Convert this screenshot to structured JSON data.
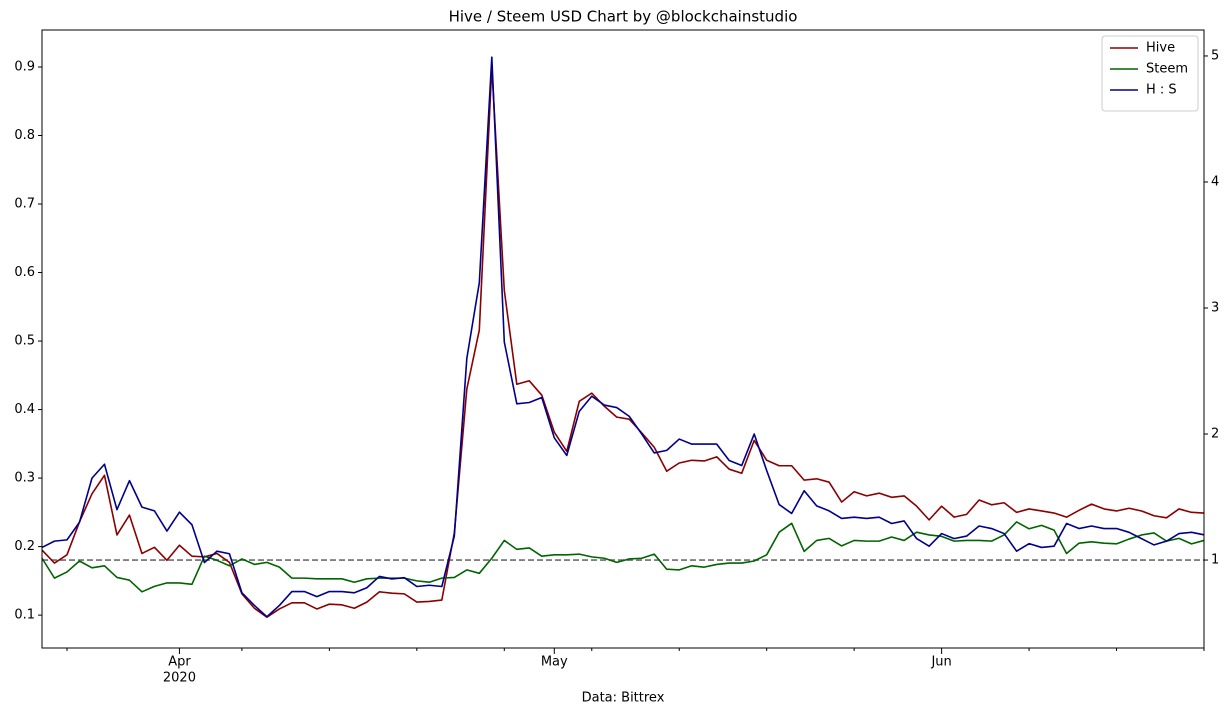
{
  "chart_data": {
    "type": "line",
    "title": "Hive / Steem USD Chart by @blockchainstudio",
    "xlabel": "Data: Bittrex",
    "x_year": "2020",
    "x": [
      "2020-03-21",
      "2020-03-22",
      "2020-03-23",
      "2020-03-24",
      "2020-03-25",
      "2020-03-26",
      "2020-03-27",
      "2020-03-28",
      "2020-03-29",
      "2020-03-30",
      "2020-03-31",
      "2020-04-01",
      "2020-04-02",
      "2020-04-03",
      "2020-04-04",
      "2020-04-05",
      "2020-04-06",
      "2020-04-07",
      "2020-04-08",
      "2020-04-09",
      "2020-04-10",
      "2020-04-11",
      "2020-04-12",
      "2020-04-13",
      "2020-04-14",
      "2020-04-15",
      "2020-04-16",
      "2020-04-17",
      "2020-04-18",
      "2020-04-19",
      "2020-04-20",
      "2020-04-21",
      "2020-04-22",
      "2020-04-23",
      "2020-04-24",
      "2020-04-25",
      "2020-04-26",
      "2020-04-27",
      "2020-04-28",
      "2020-04-29",
      "2020-04-30",
      "2020-05-01",
      "2020-05-02",
      "2020-05-03",
      "2020-05-04",
      "2020-05-05",
      "2020-05-06",
      "2020-05-07",
      "2020-05-08",
      "2020-05-09",
      "2020-05-10",
      "2020-05-11",
      "2020-05-12",
      "2020-05-13",
      "2020-05-14",
      "2020-05-15",
      "2020-05-16",
      "2020-05-17",
      "2020-05-18",
      "2020-05-19",
      "2020-05-20",
      "2020-05-21",
      "2020-05-22",
      "2020-05-23",
      "2020-05-24",
      "2020-05-25",
      "2020-05-26",
      "2020-05-27",
      "2020-05-28",
      "2020-05-29",
      "2020-05-30",
      "2020-05-31",
      "2020-06-01",
      "2020-06-02",
      "2020-06-03",
      "2020-06-04",
      "2020-06-05",
      "2020-06-06",
      "2020-06-07",
      "2020-06-08",
      "2020-06-09",
      "2020-06-10",
      "2020-06-11",
      "2020-06-12",
      "2020-06-13",
      "2020-06-14",
      "2020-06-15",
      "2020-06-16",
      "2020-06-17",
      "2020-06-18",
      "2020-06-19",
      "2020-06-20",
      "2020-06-21",
      "2020-06-22"
    ],
    "series": [
      {
        "name": "Hive",
        "color": "#8b0000",
        "values": [
          0.195,
          0.176,
          0.188,
          0.236,
          0.277,
          0.304,
          0.217,
          0.246,
          0.19,
          0.199,
          0.18,
          0.202,
          0.186,
          0.185,
          0.19,
          0.177,
          0.131,
          0.11,
          0.097,
          0.109,
          0.118,
          0.118,
          0.109,
          0.116,
          0.115,
          0.11,
          0.119,
          0.134,
          0.132,
          0.131,
          0.119,
          0.12,
          0.122,
          0.22,
          0.43,
          0.516,
          0.9,
          0.574,
          0.437,
          0.442,
          0.421,
          0.367,
          0.339,
          0.412,
          0.424,
          0.405,
          0.389,
          0.386,
          0.366,
          0.345,
          0.31,
          0.322,
          0.326,
          0.325,
          0.331,
          0.313,
          0.307,
          0.355,
          0.326,
          0.318,
          0.318,
          0.297,
          0.299,
          0.294,
          0.265,
          0.28,
          0.274,
          0.278,
          0.272,
          0.274,
          0.259,
          0.239,
          0.259,
          0.243,
          0.247,
          0.268,
          0.261,
          0.264,
          0.25,
          0.255,
          0.252,
          0.249,
          0.243,
          0.253,
          0.262,
          0.255,
          0.252,
          0.256,
          0.252,
          0.245,
          0.242,
          0.255,
          0.25,
          0.249
        ]
      },
      {
        "name": "Steem",
        "color": "#006400",
        "values": [
          0.183,
          0.154,
          0.163,
          0.179,
          0.169,
          0.172,
          0.155,
          0.151,
          0.134,
          0.142,
          0.147,
          0.147,
          0.145,
          0.186,
          0.18,
          0.172,
          0.182,
          0.174,
          0.177,
          0.17,
          0.154,
          0.154,
          0.153,
          0.153,
          0.153,
          0.148,
          0.153,
          0.154,
          0.154,
          0.154,
          0.15,
          0.148,
          0.154,
          0.155,
          0.166,
          0.161,
          0.183,
          0.209,
          0.196,
          0.198,
          0.186,
          0.188,
          0.188,
          0.189,
          0.185,
          0.183,
          0.177,
          0.182,
          0.183,
          0.189,
          0.167,
          0.166,
          0.172,
          0.17,
          0.174,
          0.176,
          0.176,
          0.179,
          0.188,
          0.221,
          0.234,
          0.193,
          0.209,
          0.212,
          0.201,
          0.209,
          0.208,
          0.208,
          0.214,
          0.209,
          0.221,
          0.217,
          0.215,
          0.208,
          0.209,
          0.209,
          0.208,
          0.217,
          0.236,
          0.226,
          0.231,
          0.224,
          0.19,
          0.205,
          0.207,
          0.205,
          0.204,
          0.211,
          0.217,
          0.22,
          0.208,
          0.212,
          0.204,
          0.209
        ]
      },
      {
        "name": "H : S",
        "color": "#00008b",
        "axis": "y2",
        "values": [
          1.1,
          1.15,
          1.16,
          1.3,
          1.65,
          1.76,
          1.4,
          1.63,
          1.42,
          1.39,
          1.23,
          1.38,
          1.28,
          0.98,
          1.07,
          1.05,
          0.74,
          0.64,
          0.55,
          0.64,
          0.75,
          0.75,
          0.71,
          0.75,
          0.75,
          0.74,
          0.78,
          0.87,
          0.85,
          0.86,
          0.79,
          0.8,
          0.79,
          1.19,
          2.6,
          3.2,
          4.99,
          2.73,
          2.24,
          2.25,
          2.29,
          1.97,
          1.83,
          2.18,
          2.3,
          2.23,
          2.21,
          2.14,
          2.0,
          1.85,
          1.87,
          1.96,
          1.92,
          1.92,
          1.92,
          1.79,
          1.75,
          2.0,
          1.71,
          1.44,
          1.37,
          1.55,
          1.43,
          1.39,
          1.33,
          1.34,
          1.33,
          1.34,
          1.29,
          1.31,
          1.17,
          1.11,
          1.21,
          1.17,
          1.19,
          1.27,
          1.25,
          1.21,
          1.07,
          1.13,
          1.1,
          1.11,
          1.29,
          1.25,
          1.27,
          1.25,
          1.25,
          1.22,
          1.17,
          1.12,
          1.15,
          1.21,
          1.22,
          1.2
        ]
      }
    ],
    "reference_line": {
      "value": 1,
      "axis": "y2",
      "color": "#808080"
    },
    "xlim": [
      "2020-03-21",
      "2020-06-22"
    ],
    "xticks": [
      {
        "value": "2020-04-01",
        "label": "Apr"
      },
      {
        "value": "2020-05-01",
        "label": "May"
      },
      {
        "value": "2020-06-01",
        "label": "Jun"
      }
    ],
    "xminorticks": [
      "2020-03-23",
      "2020-04-06",
      "2020-04-13",
      "2020-04-20",
      "2020-04-27",
      "2020-05-04",
      "2020-05-11",
      "2020-05-18",
      "2020-05-25",
      "2020-06-08",
      "2020-06-15",
      "2020-06-22"
    ],
    "ylim": [
      0.052,
      0.954
    ],
    "yticks": [
      0.1,
      0.2,
      0.3,
      0.4,
      0.5,
      0.6,
      0.7,
      0.8,
      0.9
    ],
    "y2lim": [
      0.302,
      5.206
    ],
    "y2ticks": [
      1,
      2,
      3,
      4,
      5
    ],
    "legend": "upper right",
    "grid": false
  }
}
